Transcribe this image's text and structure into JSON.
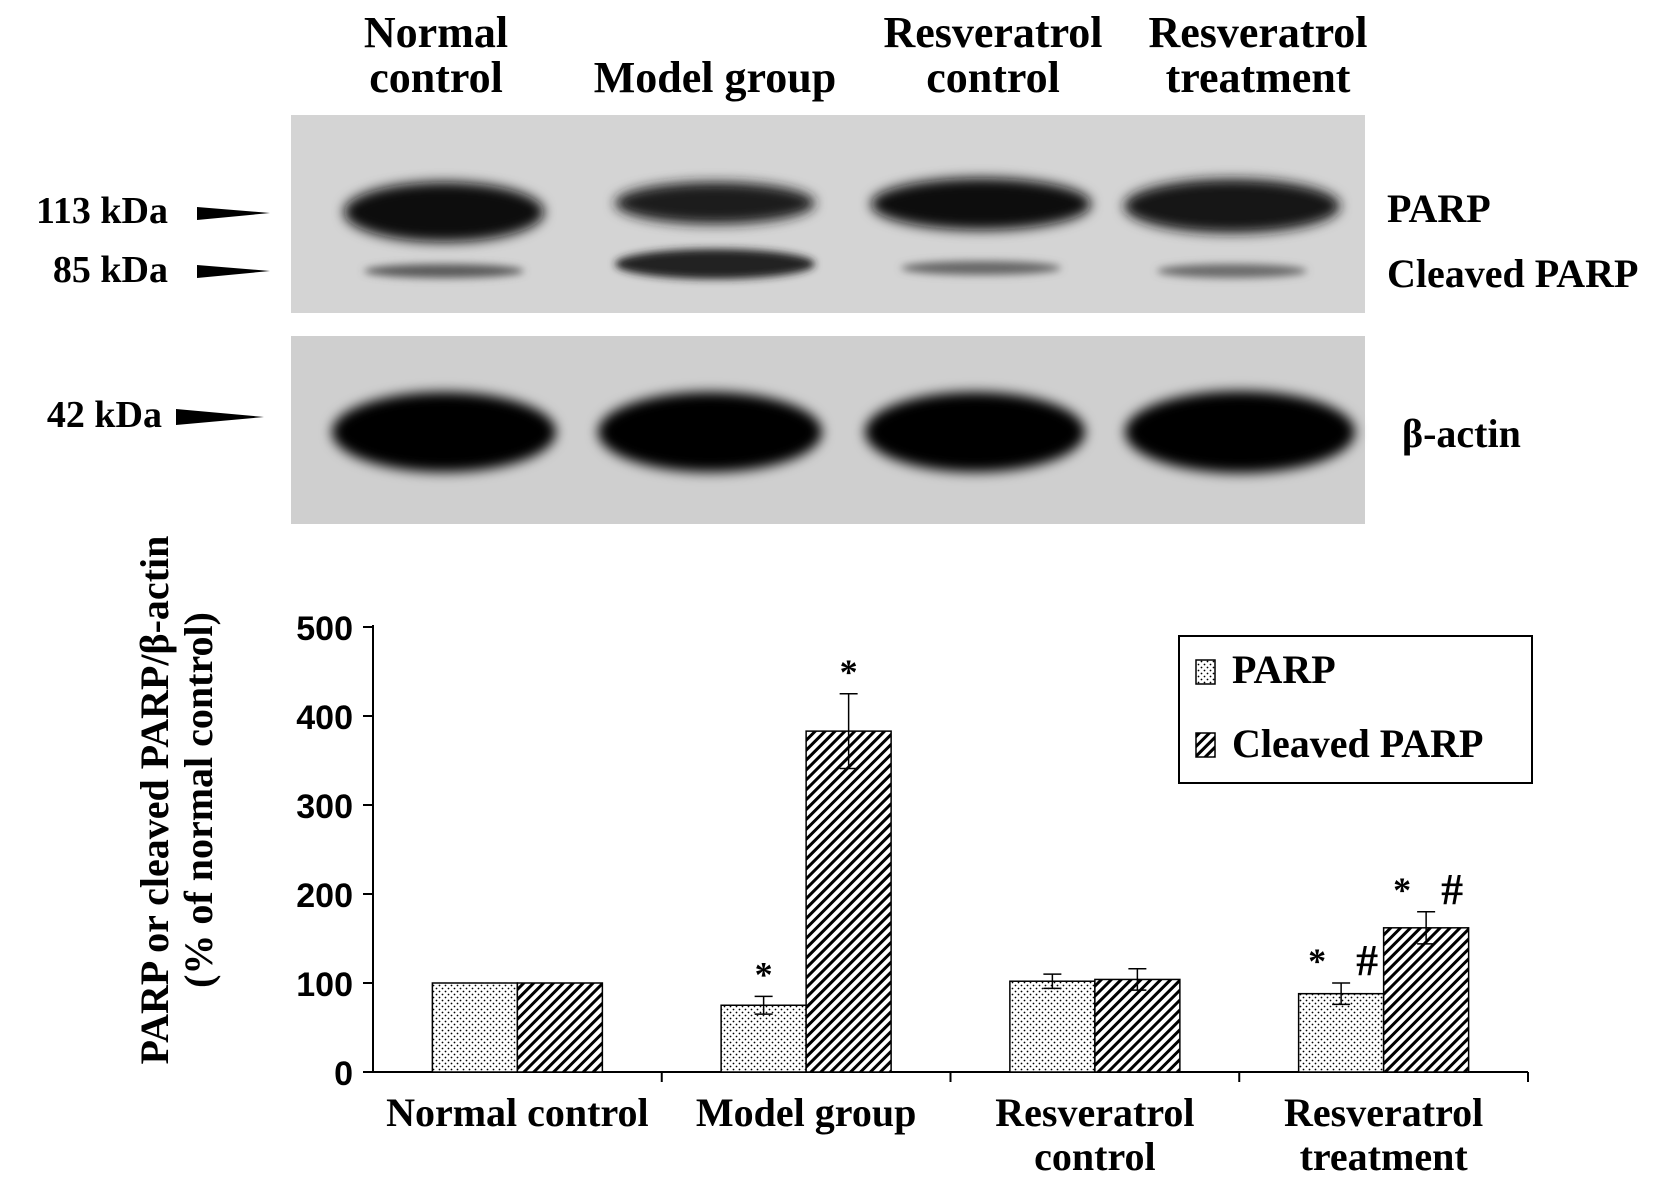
{
  "blot": {
    "lanes": [
      [
        "Normal",
        "control"
      ],
      [
        "Model group"
      ],
      [
        "Resveratrol",
        "control"
      ],
      [
        "Resveratrol",
        "treatment"
      ]
    ],
    "markers": [
      "113 kDa",
      "85 kDa",
      "42 kDa"
    ],
    "bands": [
      "PARP",
      "Cleaved PARP",
      "β-actin"
    ]
  },
  "chart_data": {
    "type": "bar",
    "categories": [
      [
        "Normal",
        "control"
      ],
      [
        "Model group"
      ],
      [
        "Resveratrol",
        "control"
      ],
      [
        "Resveratrol",
        "treatment"
      ]
    ],
    "series": [
      {
        "name": "PARP",
        "values": [
          100,
          75,
          102,
          88
        ],
        "errors": [
          0,
          10,
          8,
          12
        ],
        "annotations": [
          "",
          "*",
          "",
          "* #"
        ],
        "pattern": "dots"
      },
      {
        "name": "Cleaved PARP",
        "values": [
          100,
          383,
          104,
          162
        ],
        "errors": [
          0,
          42,
          12,
          18
        ],
        "annotations": [
          "",
          "*",
          "",
          "* #"
        ],
        "pattern": "hatch"
      }
    ],
    "ylabel": [
      "PARP or cleaved PARP/β-actin",
      "(% of normal control)"
    ],
    "xlabel": "",
    "ylim": [
      0,
      500
    ],
    "yticks": [
      0,
      100,
      200,
      300,
      400,
      500
    ],
    "grid": false,
    "legend": "top-right"
  }
}
